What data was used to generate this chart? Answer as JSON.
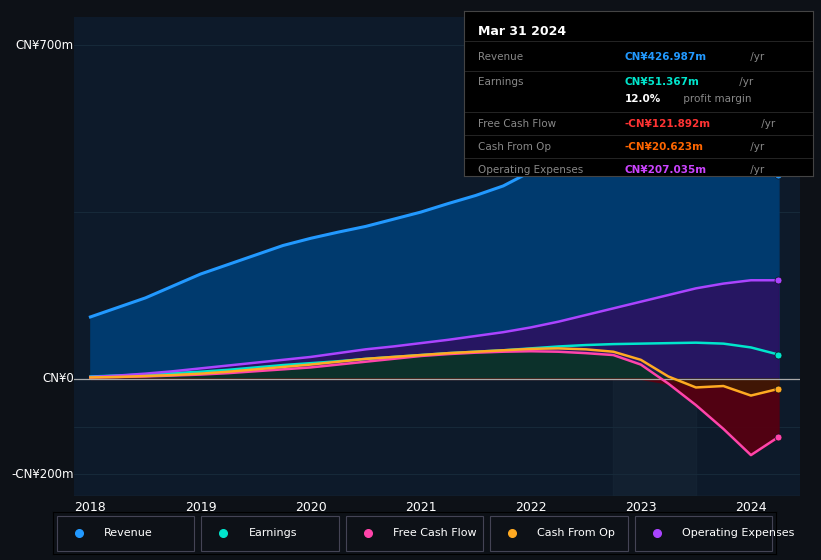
{
  "bg_color": "#0d1117",
  "plot_bg_color": "#0d1a2a",
  "grid_color": "#1a3040",
  "zero_line_color": "#888888",
  "title_box": {
    "date": "Mar 31 2024",
    "rows": [
      {
        "label": "Revenue",
        "value": "CN¥426.987m",
        "suffix": " /yr",
        "value_color": "#2299ff"
      },
      {
        "label": "Earnings",
        "value": "CN¥51.367m",
        "suffix": " /yr",
        "value_color": "#00e5cc"
      },
      {
        "label": "",
        "value": "12.0%",
        "suffix": " profit margin",
        "value_color": "#ffffff"
      },
      {
        "label": "Free Cash Flow",
        "value": "-CN¥121.892m",
        "suffix": " /yr",
        "value_color": "#ff3333"
      },
      {
        "label": "Cash From Op",
        "value": "-CN¥20.623m",
        "suffix": " /yr",
        "value_color": "#ff6600"
      },
      {
        "label": "Operating Expenses",
        "value": "CN¥207.035m",
        "suffix": " /yr",
        "value_color": "#cc44ff"
      }
    ]
  },
  "ylabel_700": "CN¥700m",
  "ylabel_0": "CN¥0",
  "ylabel_n200": "-CN¥200m",
  "xlabels": [
    "2018",
    "2019",
    "2020",
    "2021",
    "2022",
    "2023",
    "2024"
  ],
  "xticks": [
    2018,
    2019,
    2020,
    2021,
    2022,
    2023,
    2024
  ],
  "legend": [
    {
      "label": "Revenue",
      "color": "#2299ff"
    },
    {
      "label": "Earnings",
      "color": "#00e5cc"
    },
    {
      "label": "Free Cash Flow",
      "color": "#ff44aa"
    },
    {
      "label": "Cash From Op",
      "color": "#ffaa22"
    },
    {
      "label": "Operating Expenses",
      "color": "#aa44ff"
    }
  ],
  "series": {
    "x": [
      2018.0,
      2018.25,
      2018.5,
      2018.75,
      2019.0,
      2019.25,
      2019.5,
      2019.75,
      2020.0,
      2020.25,
      2020.5,
      2020.75,
      2021.0,
      2021.25,
      2021.5,
      2021.75,
      2022.0,
      2022.25,
      2022.5,
      2022.75,
      2023.0,
      2023.25,
      2023.5,
      2023.75,
      2024.0,
      2024.25
    ],
    "revenue": [
      130,
      150,
      170,
      195,
      220,
      240,
      260,
      280,
      295,
      308,
      320,
      335,
      350,
      368,
      385,
      405,
      435,
      470,
      510,
      560,
      620,
      680,
      720,
      690,
      570,
      427
    ],
    "earnings": [
      5,
      7,
      9,
      12,
      15,
      19,
      24,
      29,
      33,
      37,
      42,
      46,
      50,
      54,
      57,
      60,
      64,
      68,
      71,
      73,
      74,
      75,
      76,
      74,
      66,
      51
    ],
    "free_cash_flow": [
      3,
      4,
      5,
      7,
      9,
      12,
      16,
      20,
      24,
      30,
      36,
      42,
      48,
      52,
      55,
      57,
      58,
      57,
      54,
      50,
      30,
      -10,
      -55,
      -105,
      -160,
      -122
    ],
    "cash_from_op": [
      3,
      4,
      6,
      8,
      11,
      15,
      20,
      25,
      30,
      36,
      42,
      46,
      50,
      54,
      57,
      60,
      63,
      64,
      62,
      57,
      40,
      5,
      -18,
      -15,
      -35,
      -21
    ],
    "op_expenses": [
      4,
      7,
      11,
      16,
      22,
      28,
      34,
      40,
      46,
      54,
      62,
      68,
      75,
      82,
      90,
      98,
      108,
      120,
      134,
      148,
      162,
      176,
      190,
      200,
      207,
      207
    ]
  }
}
